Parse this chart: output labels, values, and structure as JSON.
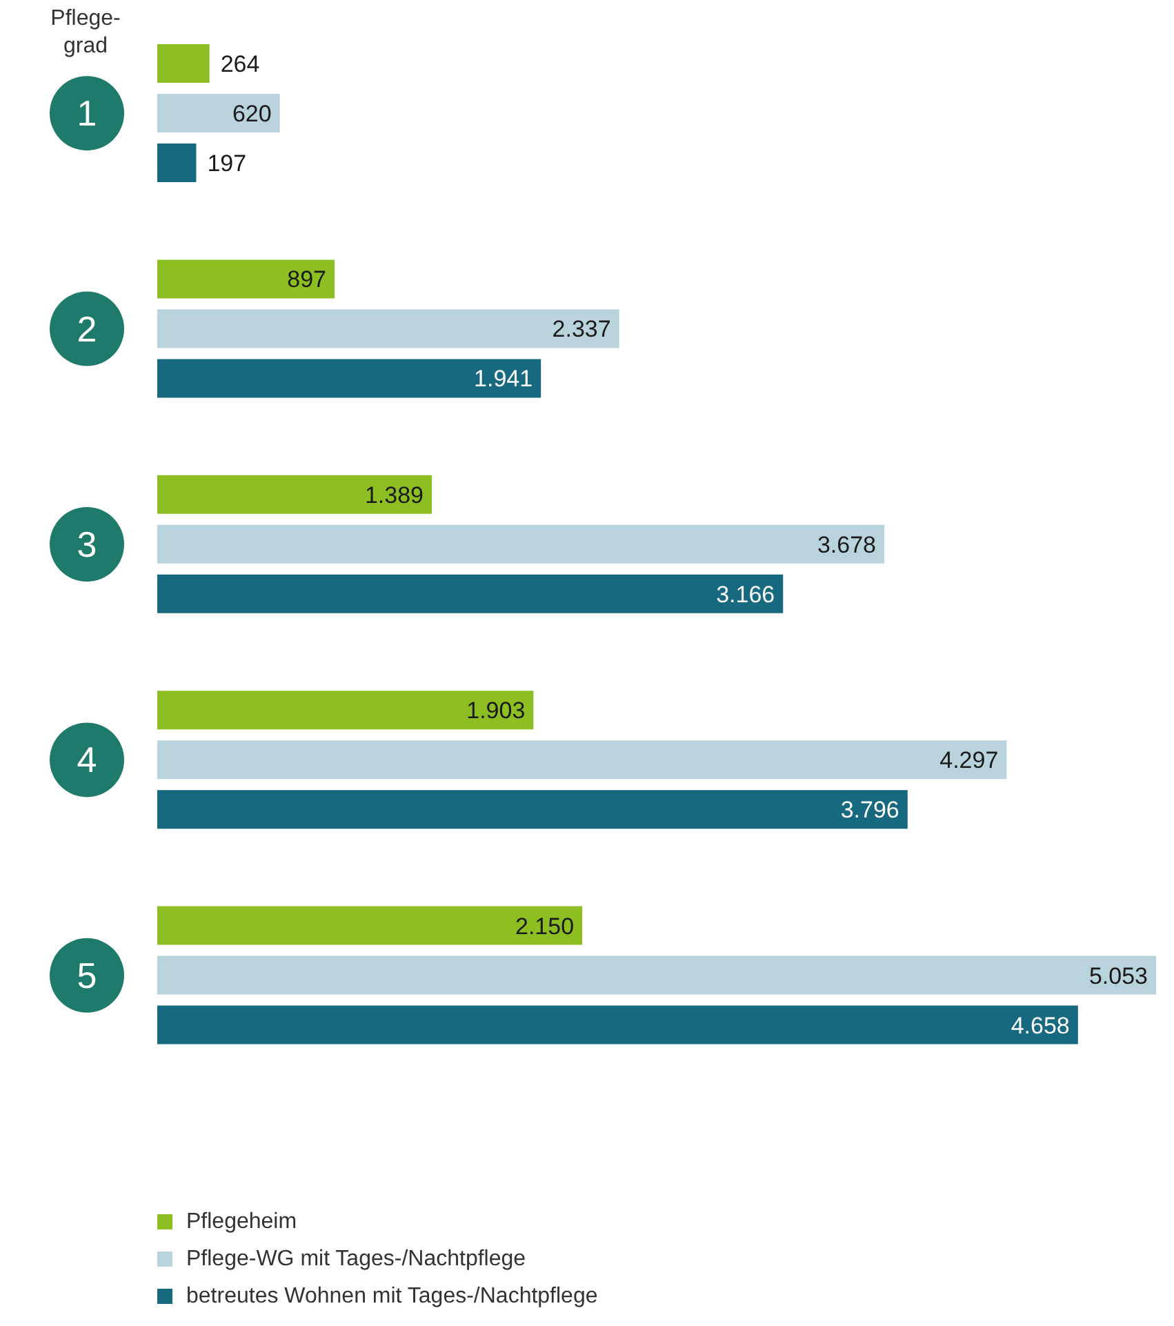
{
  "chart_data": {
    "type": "bar",
    "orientation": "horizontal",
    "ylabel": "Pflege-grad",
    "categories": [
      "1",
      "2",
      "3",
      "4",
      "5"
    ],
    "series": [
      {
        "name": "Pflegeheim",
        "color": "#8dbf23",
        "values": [
          264,
          897,
          1389,
          1903,
          2150
        ],
        "value_labels": [
          "264",
          "897",
          "1.389",
          "1.903",
          "2.150"
        ]
      },
      {
        "name": "Pflege-WG mit Tages-/Nachtpflege",
        "color": "#b8d3dc",
        "values": [
          620,
          2337,
          3678,
          4297,
          5053
        ],
        "value_labels": [
          "620",
          "2.337",
          "3.678",
          "4.297",
          "5.053"
        ]
      },
      {
        "name": "betreutes Wohnen mit Tages-/Nachtpflege",
        "color": "#17697f",
        "values": [
          197,
          1941,
          3166,
          3796,
          4658
        ],
        "value_labels": [
          "197",
          "1.941",
          "3.166",
          "3.796",
          "4.658"
        ]
      }
    ],
    "legend": "bottom left",
    "grid": false
  }
}
